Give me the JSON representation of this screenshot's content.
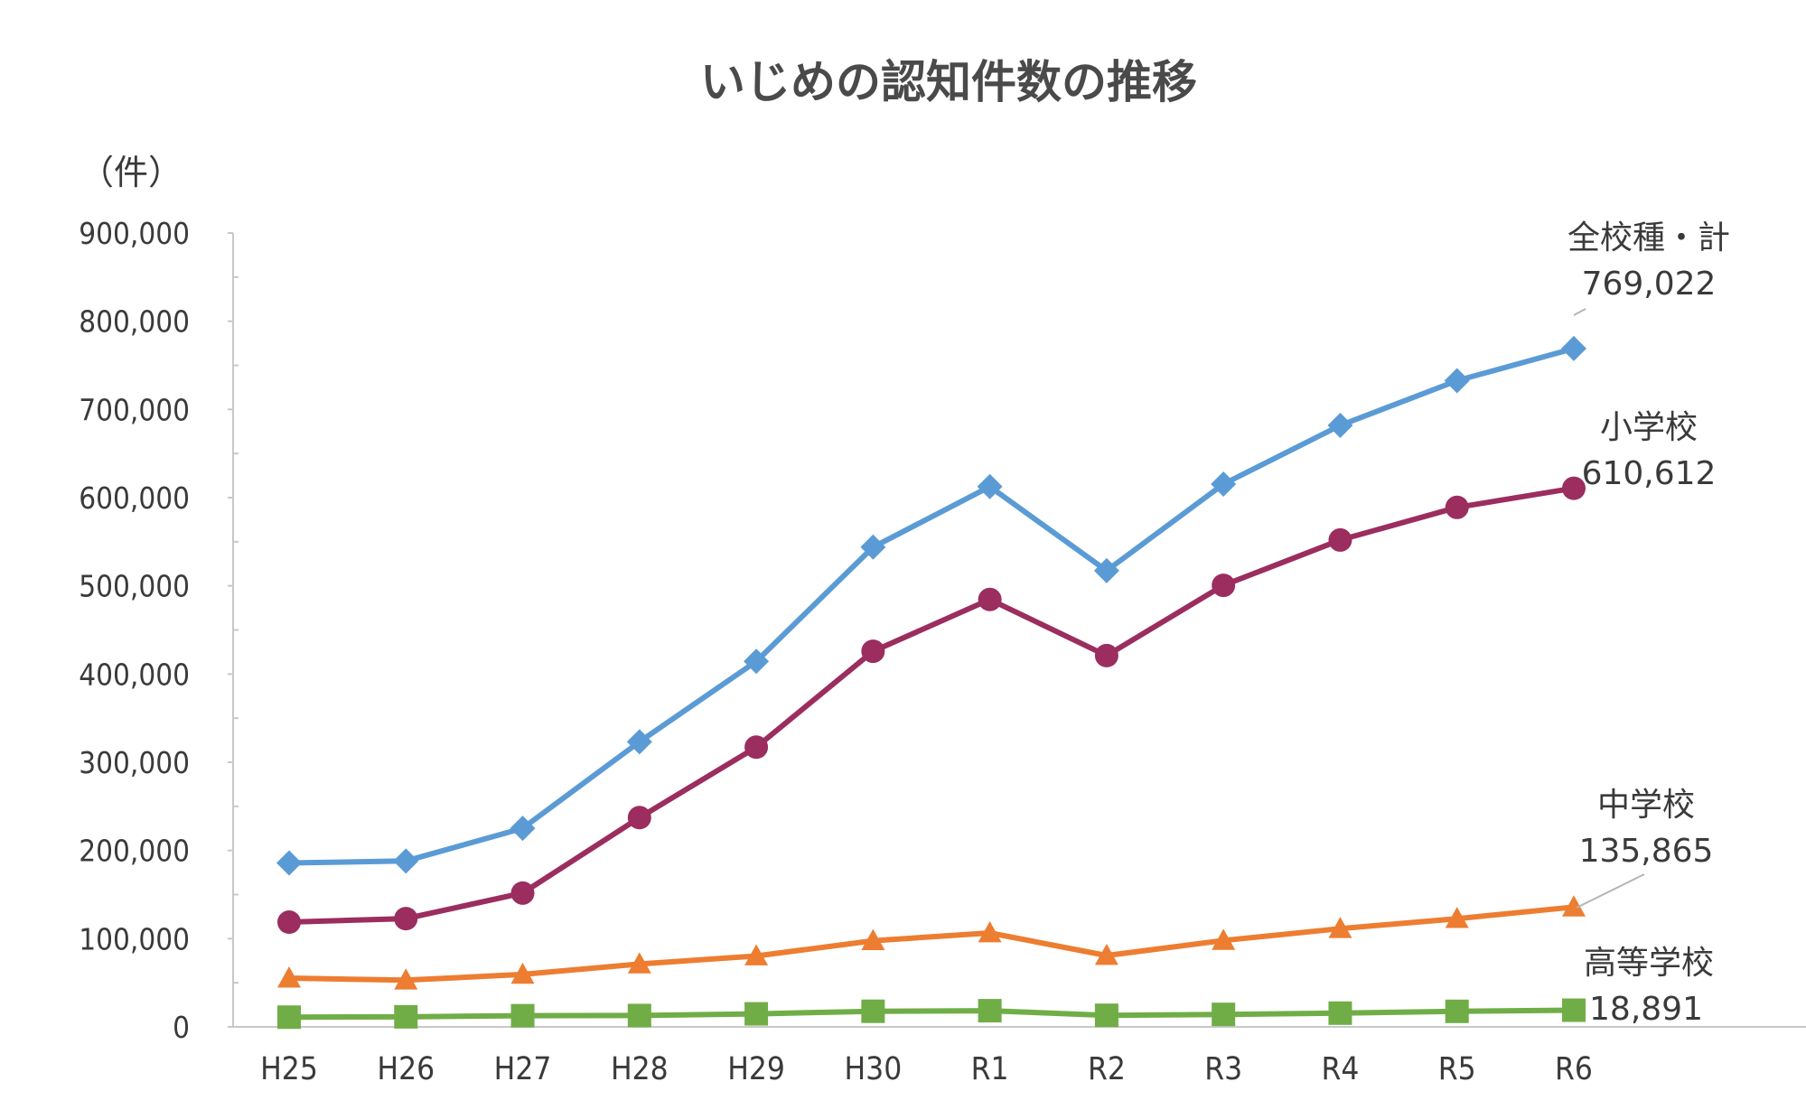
{
  "chart_data": {
    "type": "line",
    "title": "いじめの認知件数の推移",
    "unit_label": "（件）",
    "ylim": [
      0,
      900000
    ],
    "yticks": [
      0,
      100000,
      200000,
      300000,
      400000,
      500000,
      600000,
      700000,
      800000,
      900000
    ],
    "ytick_labels": [
      "0",
      "100,000",
      "200,000",
      "300,000",
      "400,000",
      "500,000",
      "600,000",
      "700,000",
      "800,000",
      "900,000"
    ],
    "categories": [
      "H25",
      "H26",
      "H27",
      "H28",
      "H29",
      "H30",
      "R1",
      "R2",
      "R3",
      "R4",
      "R5",
      "R6"
    ],
    "grid": false,
    "series": [
      {
        "key": "total",
        "name": "全校種・計",
        "color": "#5b9bd5",
        "marker": "diamond",
        "end_label": "769,022",
        "values": [
          185803,
          188072,
          225132,
          323143,
          414378,
          543933,
          612496,
          517163,
          615351,
          681948,
          732568,
          769022
        ]
      },
      {
        "key": "elementary",
        "name": "小学校",
        "color": "#9b2d5f",
        "marker": "circle",
        "end_label": "610,612",
        "values": [
          118748,
          122734,
          151692,
          237256,
          317121,
          425844,
          484545,
          420897,
          500562,
          551944,
          588930,
          610612
        ]
      },
      {
        "key": "junior_high",
        "name": "中学校",
        "color": "#ed7d31",
        "marker": "triangle",
        "end_label": "135,865",
        "values": [
          55248,
          52971,
          59502,
          71309,
          80424,
          97704,
          106524,
          80877,
          97937,
          111404,
          122703,
          135865
        ]
      },
      {
        "key": "high_school",
        "name": "高等学校",
        "color": "#70ad47",
        "marker": "square",
        "end_label": "18,891",
        "values": [
          11039,
          11404,
          12664,
          12874,
          14789,
          17709,
          18352,
          13126,
          14157,
          15568,
          17611,
          18891
        ]
      }
    ]
  }
}
